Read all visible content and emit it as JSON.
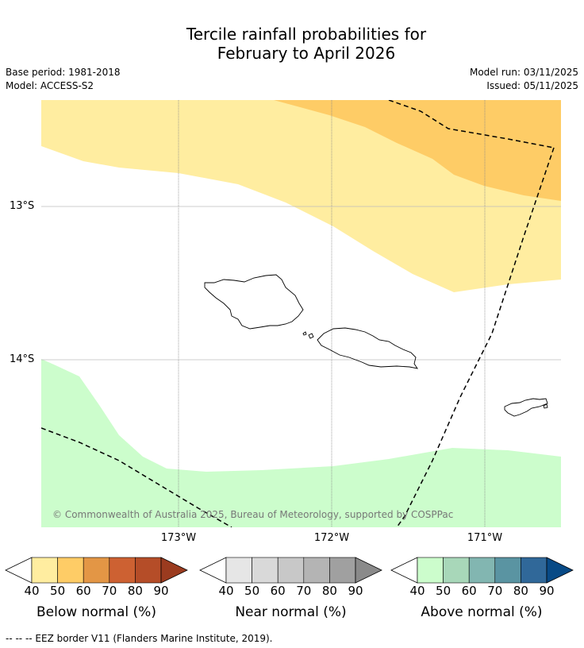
{
  "title_line1": "Tercile rainfall probabilities for",
  "title_line2": "February to April 2026",
  "meta": {
    "base_period": "Base period: 1981-2018",
    "model": "Model: ACCESS-S2",
    "model_run": "Model run: 03/11/2025",
    "issued": "Issued: 05/11/2025"
  },
  "axes": {
    "lon_labels": [
      "173°W",
      "172°W",
      "171°W"
    ],
    "lat_labels": [
      "13°S",
      "14°S"
    ]
  },
  "copyright": "© Commonwealth of Australia 2025, Bureau of Meteorology, supported by COSPPac",
  "colorbars": [
    {
      "name": "below",
      "label": "Below normal (%)",
      "ticks": [
        "40",
        "50",
        "60",
        "70",
        "80",
        "90"
      ],
      "colors": [
        "#ffeda0",
        "#fecc66",
        "#e39645",
        "#cd6132",
        "#b54d28"
      ],
      "arrow_color": "#9b3b1f"
    },
    {
      "name": "near",
      "label": "Near normal (%)",
      "ticks": [
        "40",
        "50",
        "60",
        "70",
        "80",
        "90"
      ],
      "colors": [
        "#e6e6e6",
        "#d9d9d9",
        "#c8c8c8",
        "#b4b4b4",
        "#a0a0a0"
      ],
      "arrow_color": "#8a8a8a"
    },
    {
      "name": "above",
      "label": "Above normal (%)",
      "ticks": [
        "40",
        "50",
        "60",
        "70",
        "80",
        "90"
      ],
      "colors": [
        "#ccfdcc",
        "#a8d7b9",
        "#82b6b1",
        "#5a94a2",
        "#306899"
      ],
      "arrow_color": "#084a86"
    }
  ],
  "map_colors": {
    "below_40_50": "#ffeda0",
    "below_50_60": "#fecc66",
    "above_40_50": "#ccfdcc"
  },
  "eez_legend": "--  --  -- EEZ border V11 (Flanders Marine Institute, 2019)."
}
